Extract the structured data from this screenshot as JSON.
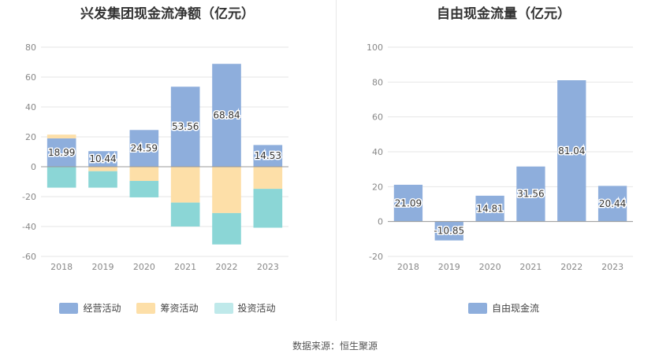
{
  "source_text": "数据来源：恒生聚源",
  "colors": {
    "operating": "#8eaedc",
    "financing": "#fddfa8",
    "investing": "#8bd6d6",
    "investing_legend": "#bfe9ea",
    "fcf": "#8eaedc"
  },
  "chart_data": [
    {
      "type": "bar",
      "stacked": true,
      "title": "兴发集团现金流净额（亿元）",
      "categories": [
        "2018",
        "2019",
        "2020",
        "2021",
        "2022",
        "2023"
      ],
      "ylim": [
        -60,
        80
      ],
      "yticks": [
        -60,
        -40,
        -20,
        0,
        20,
        40,
        60,
        80
      ],
      "grid": true,
      "legend_position": "bottom",
      "series": [
        {
          "name": "经营活动",
          "values": [
            18.99,
            10.44,
            24.59,
            53.56,
            68.84,
            14.53
          ],
          "labeled": true
        },
        {
          "name": "筹资活动",
          "values": [
            2.5,
            -3.0,
            -9.5,
            -24.0,
            -31.0,
            -14.8
          ],
          "labeled": false
        },
        {
          "name": "投资活动",
          "values": [
            -14.0,
            -11.0,
            -11.0,
            -16.0,
            -21.0,
            -26.0
          ],
          "labeled": false
        }
      ]
    },
    {
      "type": "bar",
      "title": "自由现金流量（亿元）",
      "categories": [
        "2018",
        "2019",
        "2020",
        "2021",
        "2022",
        "2023"
      ],
      "ylim": [
        -20,
        100
      ],
      "yticks": [
        -20,
        0,
        20,
        40,
        60,
        80,
        100
      ],
      "grid": true,
      "legend_position": "bottom",
      "series": [
        {
          "name": "自由现金流",
          "values": [
            21.09,
            -10.85,
            14.81,
            31.56,
            81.04,
            20.44
          ],
          "labeled": true
        }
      ]
    }
  ]
}
